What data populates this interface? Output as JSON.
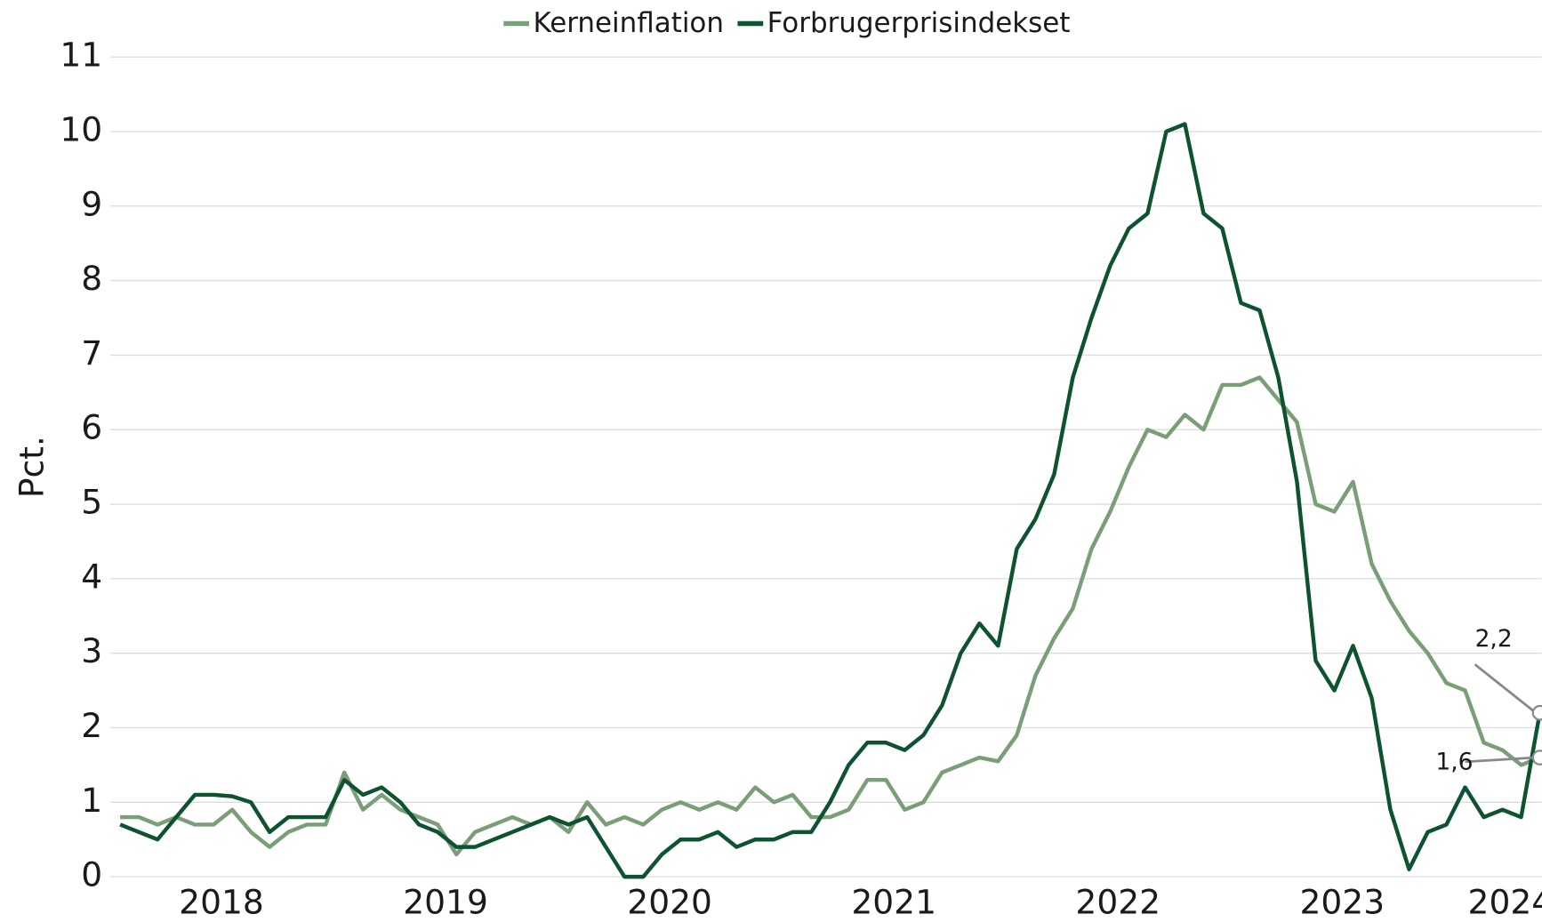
{
  "chart_data": {
    "type": "line",
    "y_label": "Pct.",
    "categories": [
      null,
      null,
      null,
      null,
      null,
      "2018",
      null,
      null,
      null,
      null,
      null,
      null,
      null,
      null,
      null,
      null,
      null,
      "2019",
      null,
      null,
      null,
      null,
      null,
      null,
      null,
      null,
      null,
      null,
      null,
      "2020",
      null,
      null,
      null,
      null,
      null,
      null,
      null,
      null,
      null,
      null,
      null,
      "2021",
      null,
      null,
      null,
      null,
      null,
      null,
      null,
      null,
      null,
      null,
      null,
      "2022",
      null,
      null,
      null,
      null,
      null,
      null,
      null,
      null,
      null,
      null,
      null,
      "2023",
      null,
      null,
      null,
      null,
      null,
      null,
      null,
      null,
      "2024",
      null,
      null
    ],
    "series": [
      {
        "name": "Kerneinflation",
        "color": "#7a9e78",
        "values": [
          0.8,
          0.8,
          0.7,
          0.8,
          0.7,
          0.7,
          0.9,
          0.6,
          0.4,
          0.6,
          0.7,
          0.7,
          1.4,
          0.9,
          1.1,
          0.9,
          0.8,
          0.7,
          0.3,
          0.6,
          0.7,
          0.8,
          0.7,
          0.8,
          0.6,
          1.0,
          0.7,
          0.8,
          0.7,
          0.9,
          1.0,
          0.9,
          1.0,
          0.9,
          1.2,
          1.0,
          1.1,
          0.8,
          0.8,
          0.9,
          1.3,
          1.3,
          0.9,
          1.0,
          1.4,
          1.5,
          1.6,
          1.55,
          1.9,
          2.7,
          3.2,
          3.6,
          4.4,
          4.9,
          5.5,
          6.0,
          5.9,
          6.2,
          6.0,
          6.6,
          6.6,
          6.7,
          6.4,
          6.1,
          5.0,
          4.9,
          5.3,
          4.2,
          3.7,
          3.3,
          3.0,
          2.6,
          2.5,
          1.8,
          1.7,
          1.5,
          1.6
        ],
        "value_labels": [
          null,
          null,
          null,
          null,
          null,
          null,
          null,
          null,
          null,
          null,
          null,
          null,
          null,
          null,
          null,
          null,
          null,
          null,
          null,
          null,
          null,
          null,
          null,
          null,
          null,
          null,
          null,
          null,
          null,
          null,
          null,
          null,
          null,
          null,
          null,
          null,
          null,
          null,
          null,
          null,
          null,
          null,
          null,
          null,
          null,
          null,
          null,
          null,
          null,
          null,
          null,
          null,
          null,
          null,
          null,
          null,
          null,
          null,
          null,
          null,
          null,
          null,
          null,
          null,
          null,
          null,
          null,
          null,
          null,
          null,
          null,
          null,
          null,
          null,
          null,
          null,
          "1,6"
        ]
      },
      {
        "name": "Forbrugerprisindekset",
        "color": "#0d5330",
        "values": [
          0.7,
          0.6,
          0.5,
          0.8,
          1.1,
          1.1,
          1.08,
          1.0,
          0.6,
          0.8,
          0.8,
          0.8,
          1.3,
          1.1,
          1.2,
          1.0,
          0.7,
          0.6,
          0.4,
          0.4,
          0.5,
          0.6,
          0.7,
          0.8,
          0.7,
          0.8,
          0.4,
          0.0,
          0.0,
          0.3,
          0.5,
          0.5,
          0.6,
          0.4,
          0.5,
          0.5,
          0.6,
          0.6,
          1.0,
          1.5,
          1.8,
          1.8,
          1.7,
          1.9,
          2.3,
          3.0,
          3.4,
          3.1,
          4.4,
          4.8,
          5.4,
          6.7,
          7.5,
          8.2,
          8.7,
          8.9,
          10.0,
          10.1,
          8.9,
          8.7,
          7.7,
          7.6,
          6.7,
          5.3,
          2.9,
          2.5,
          3.1,
          2.4,
          0.9,
          0.1,
          0.6,
          0.7,
          1.2,
          0.8,
          0.9,
          0.8,
          2.2
        ],
        "value_labels": [
          null,
          null,
          null,
          null,
          null,
          null,
          null,
          null,
          null,
          null,
          null,
          null,
          null,
          null,
          null,
          null,
          null,
          null,
          null,
          null,
          null,
          null,
          null,
          null,
          null,
          null,
          null,
          null,
          null,
          null,
          null,
          null,
          null,
          null,
          null,
          null,
          null,
          null,
          null,
          null,
          null,
          null,
          null,
          null,
          null,
          null,
          null,
          null,
          null,
          null,
          null,
          null,
          null,
          null,
          null,
          null,
          null,
          null,
          null,
          null,
          null,
          null,
          null,
          null,
          null,
          null,
          null,
          null,
          null,
          null,
          null,
          null,
          null,
          null,
          null,
          null,
          "2,2"
        ]
      }
    ],
    "ylim": [
      0,
      11
    ],
    "yticks": [
      0,
      1,
      2,
      3,
      4,
      5,
      6,
      7,
      8,
      9,
      10,
      11
    ],
    "grid": true,
    "legend": "top"
  }
}
